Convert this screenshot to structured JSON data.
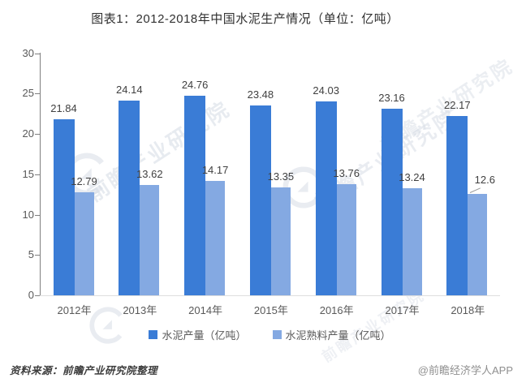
{
  "title": "图表1：2012-2018年中国水泥生产情况（单位：亿吨）",
  "chart_data": {
    "type": "bar",
    "categories": [
      "2012年",
      "2013年",
      "2014年",
      "2015年",
      "2016年",
      "2017年",
      "2018年"
    ],
    "series": [
      {
        "name": "水泥产量（亿吨）",
        "color": "#3a7cd6",
        "values": [
          21.84,
          24.14,
          24.76,
          23.48,
          24.03,
          23.16,
          22.17
        ]
      },
      {
        "name": "水泥熟料产量（亿吨）",
        "color": "#84a9e2",
        "values": [
          12.79,
          13.62,
          14.17,
          13.35,
          13.76,
          13.24,
          12.6
        ]
      }
    ],
    "ylim": [
      0,
      30
    ],
    "ytick_step": 5,
    "yticks": [
      0,
      5,
      10,
      15,
      20,
      25,
      30
    ],
    "grid": false,
    "legend_position": "bottom",
    "data_labels": true
  },
  "footer": {
    "source": "资料来源：前瞻产业研究院整理",
    "credit": "@前瞻经济学人APP"
  },
  "watermark": {
    "text": "前瞻产业研究院",
    "color": "#d5dbe4"
  }
}
